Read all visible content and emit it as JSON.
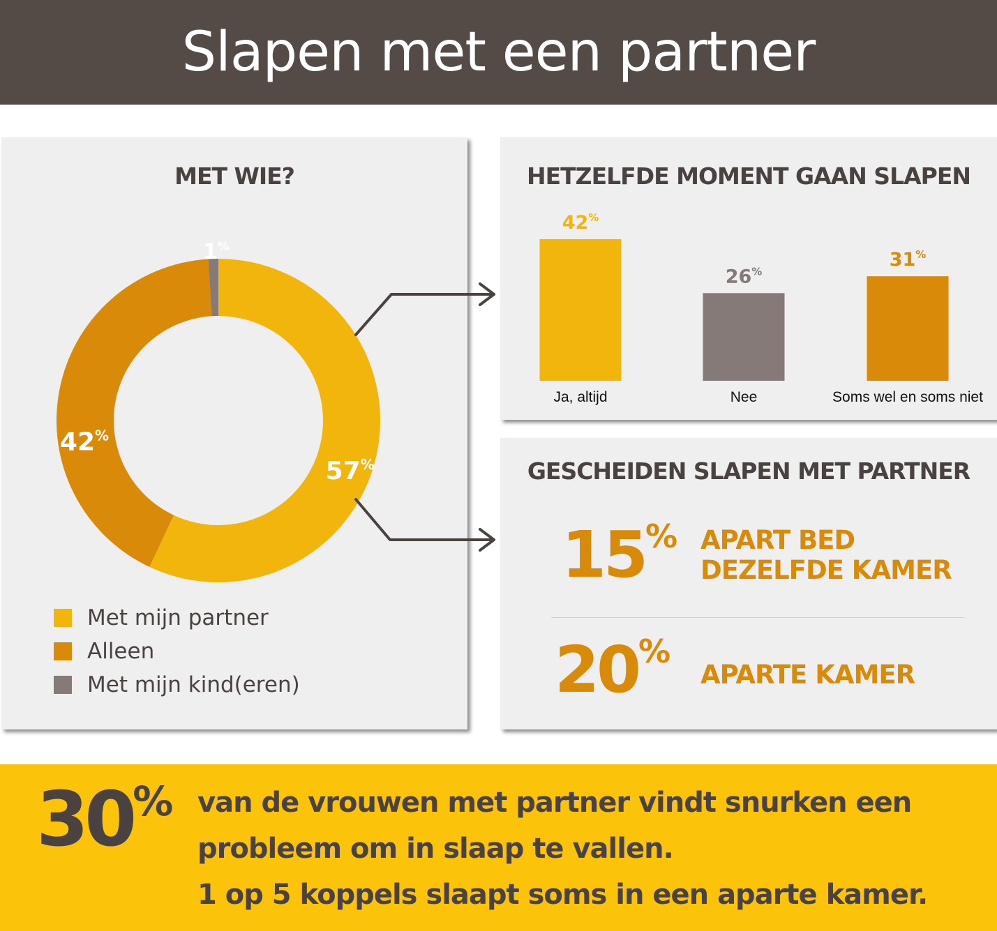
{
  "header": {
    "title": "Slapen met een partner"
  },
  "colors": {
    "header_bg": "#544a46",
    "panel_bg": "#efefef",
    "yellow": "#f2b50c",
    "orange": "#d88a08",
    "gray": "#857a78",
    "dark_text": "#4a4240",
    "banner_bg": "#fbc30a"
  },
  "chart_data": [
    {
      "type": "pie",
      "style": "donut",
      "title": "MET WIE?",
      "slices": [
        {
          "label": "Met mijn partner",
          "value": 57,
          "display": "57",
          "color": "#f2b50c"
        },
        {
          "label": "Alleen",
          "value": 42,
          "display": "42",
          "color": "#d88a08"
        },
        {
          "label": "Met mijn kind(eren)",
          "value": 1,
          "display": "1",
          "color": "#857a78"
        }
      ],
      "unit": "%",
      "legend_position": "bottom-left"
    },
    {
      "type": "bar",
      "title": "HETZELFDE MOMENT GAAN SLAPEN",
      "categories": [
        "Ja, altijd",
        "Nee",
        "Soms wel en soms niet"
      ],
      "values": [
        42,
        26,
        31
      ],
      "value_labels": [
        "42",
        "26",
        "31"
      ],
      "unit": "%",
      "colors": [
        "#f2b50c",
        "#857a78",
        "#d88a08"
      ],
      "ylim": [
        0,
        45
      ],
      "grid": false
    }
  ],
  "separate_sleeping": {
    "title": "GESCHEIDEN SLAPEN MET PARTNER",
    "items": [
      {
        "value": "15",
        "unit": "%",
        "label_line1": "APART BED",
        "label_line2": "DEZELFDE KAMER"
      },
      {
        "value": "20",
        "unit": "%",
        "label_line1": "APARTE KAMER",
        "label_line2": ""
      }
    ]
  },
  "banner": {
    "value": "30",
    "unit": "%",
    "line1": "van de vrouwen met partner vindt snurken een",
    "line2": "probleem om in slaap te vallen.",
    "line3": "1 op 5 koppels slaapt soms in een aparte kamer."
  }
}
